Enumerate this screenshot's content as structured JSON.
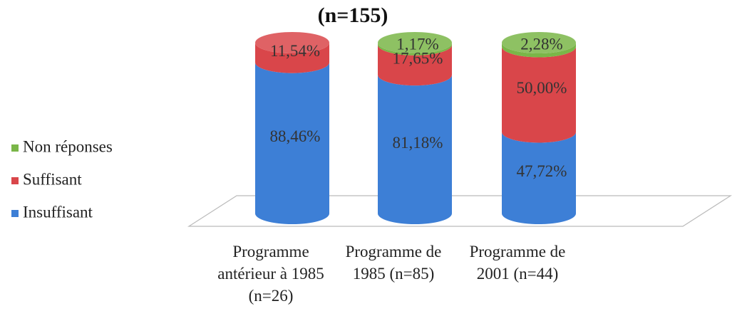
{
  "chart_data": {
    "type": "bar3d_cylinder_stacked",
    "title": "(n=155)",
    "categories": [
      "Programme antérieur à 1985 (n=26)",
      "Programme de 1985 (n=85)",
      "Programme de 2001 (n=44)"
    ],
    "series": [
      {
        "name": "Insuffisant",
        "color": "#3d7fd6",
        "values": [
          88.46,
          81.18,
          47.72
        ],
        "value_labels": [
          "88,46%",
          "81,18%",
          "47,72%"
        ]
      },
      {
        "name": "Suffisant",
        "color": "#d9464a",
        "values": [
          11.54,
          17.65,
          50.0
        ],
        "value_labels": [
          "11,54%",
          "17,65%",
          "50,00%"
        ]
      },
      {
        "name": "Non réponses",
        "color": "#7ab648",
        "values": [
          null,
          1.17,
          2.28
        ],
        "value_labels": [
          null,
          "1,17%",
          "2,28%"
        ]
      }
    ],
    "legend": "left"
  }
}
